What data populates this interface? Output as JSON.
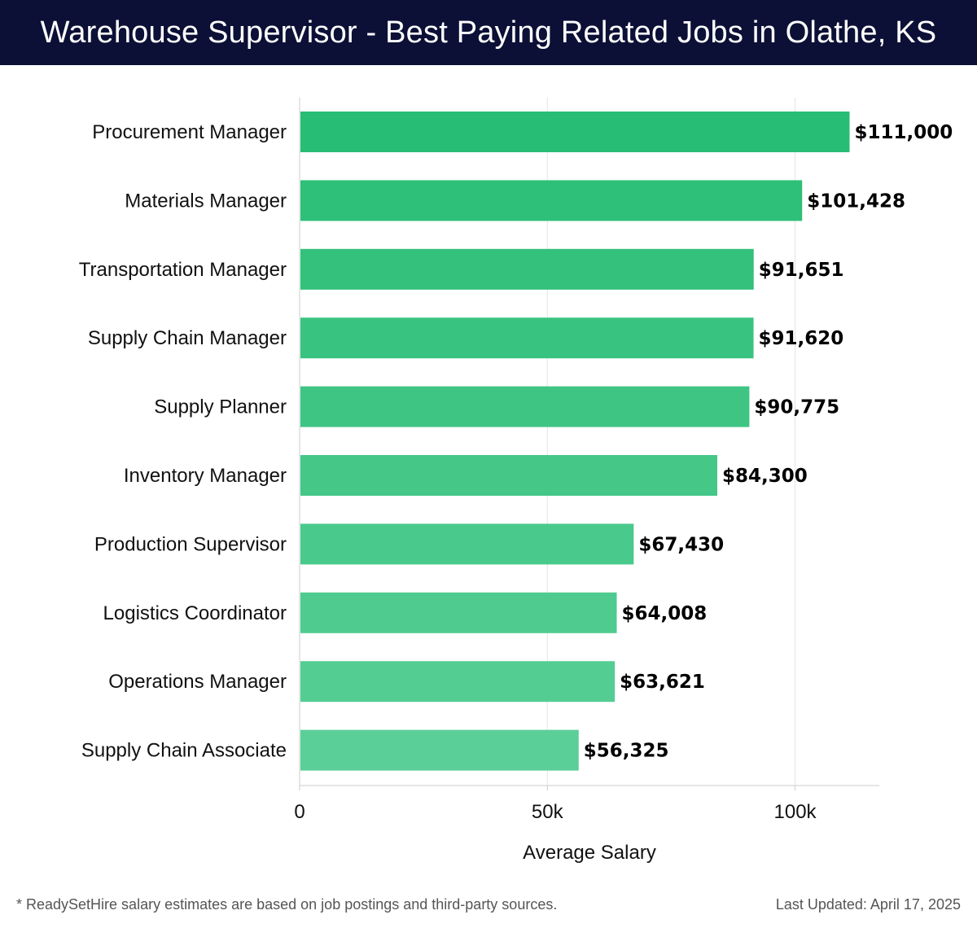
{
  "header": {
    "title": "Warehouse Supervisor - Best Paying Related Jobs in Olathe, KS"
  },
  "chart_data": {
    "type": "bar",
    "orientation": "horizontal",
    "title": "Warehouse Supervisor - Best Paying Related Jobs in Olathe, KS",
    "xlabel": "Average Salary",
    "ylabel": "",
    "xlim": [
      0,
      117000
    ],
    "xticks": [
      0,
      50000,
      100000
    ],
    "xtick_labels": [
      "0",
      "50k",
      "100k"
    ],
    "grid": "vertical",
    "categories": [
      "Procurement Manager",
      "Materials Manager",
      "Transportation Manager",
      "Supply Chain Manager",
      "Supply Planner",
      "Inventory Manager",
      "Production Supervisor",
      "Logistics Coordinator",
      "Operations Manager",
      "Supply Chain Associate"
    ],
    "values": [
      111000,
      101428,
      91651,
      91620,
      90775,
      84300,
      67430,
      64008,
      63621,
      56325
    ],
    "value_labels": [
      "$111,000",
      "$101,428",
      "$91,651",
      "$91,620",
      "$90,775",
      "$84,300",
      "$67,430",
      "$64,008",
      "$63,621",
      "$56,325"
    ],
    "colors": {
      "bar_dark": "#28bd74",
      "bar_light": "#5acf97",
      "gridline": "#e3e3e3",
      "axis": "#cccccc"
    }
  },
  "footer": {
    "note": "* ReadySetHire salary estimates are based on job postings and third-party sources.",
    "updated": "Last Updated: April 17, 2025"
  }
}
